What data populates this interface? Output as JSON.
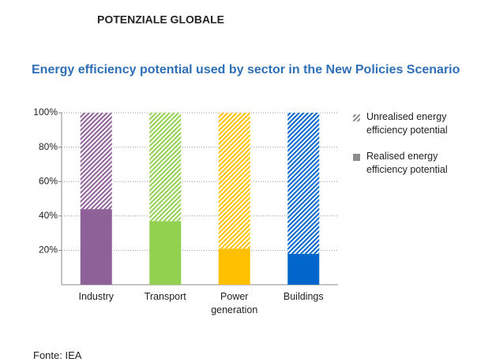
{
  "header": "POTENZIALE GLOBALE",
  "chart_data": {
    "type": "stacked_bar",
    "title": "Energy efficiency potential used by sector in the New Policies Scenario",
    "categories": [
      "Industry",
      "Transport",
      "Power generation",
      "Buildings"
    ],
    "category_colors": [
      "#8e6198",
      "#92d050",
      "#ffc000",
      "#0066cc"
    ],
    "series": [
      {
        "name": "Unrealised energy efficiency potential",
        "color": "#8c8c8c",
        "hatched": true,
        "values": [
          56,
          63,
          79,
          82
        ]
      },
      {
        "name": "Realised energy efficiency potential",
        "color": "#8c8c8c",
        "hatched": false,
        "values": [
          44,
          37,
          21,
          18
        ]
      }
    ],
    "ylim": [
      0,
      100
    ],
    "yticks": [
      {
        "value": 20,
        "label": "20%"
      },
      {
        "value": 40,
        "label": "40%"
      },
      {
        "value": 60,
        "label": "60%"
      },
      {
        "value": 80,
        "label": "80%"
      },
      {
        "value": 100,
        "label": "100%"
      }
    ],
    "grid": true,
    "legend": "right"
  },
  "source": "Fonte: IEA"
}
